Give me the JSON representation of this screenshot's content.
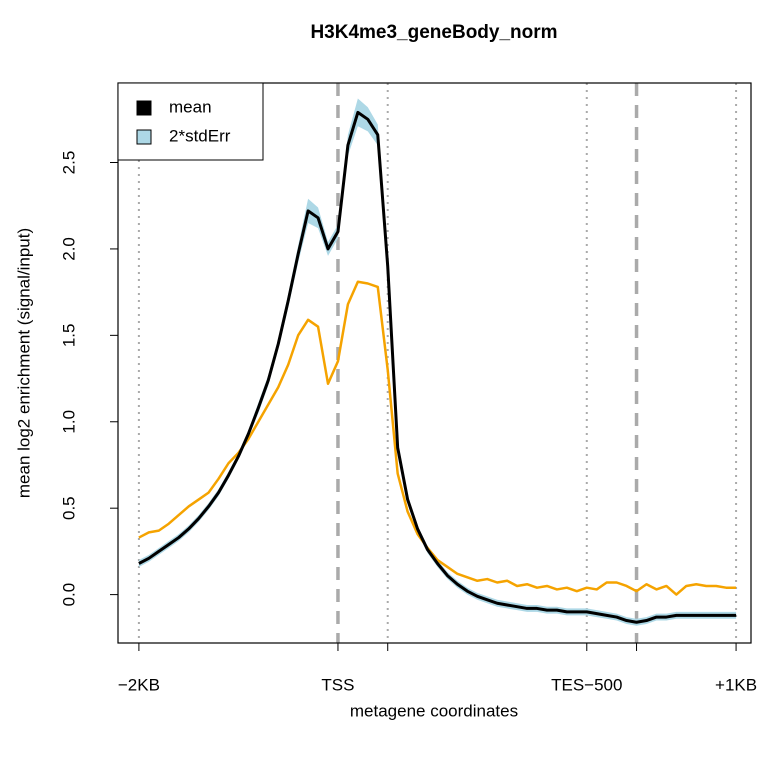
{
  "chart_data": {
    "type": "line",
    "title": "H3K4me3_geneBody_norm",
    "xlabel": "metagene coordinates",
    "ylabel": "mean log2 enrichment (signal/input)",
    "x": [
      0,
      2,
      4,
      6,
      8,
      10,
      12,
      14,
      16,
      18,
      20,
      22,
      24,
      26,
      28,
      30,
      32,
      34,
      36,
      38,
      40,
      42,
      44,
      46,
      48,
      50,
      52,
      54,
      56,
      58,
      60,
      62,
      64,
      66,
      68,
      70,
      72,
      74,
      76,
      78,
      80,
      82,
      84,
      86,
      88,
      90,
      92,
      94,
      96,
      98,
      100,
      102,
      104,
      106,
      108,
      110,
      112,
      114,
      116,
      118,
      120
    ],
    "series": [
      {
        "name": "mean",
        "color": "#000000",
        "values": [
          0.18,
          0.21,
          0.25,
          0.29,
          0.33,
          0.38,
          0.44,
          0.51,
          0.59,
          0.69,
          0.8,
          0.93,
          1.08,
          1.24,
          1.45,
          1.7,
          1.97,
          2.22,
          2.18,
          2.0,
          2.1,
          2.6,
          2.79,
          2.75,
          2.66,
          1.9,
          0.85,
          0.55,
          0.38,
          0.26,
          0.18,
          0.11,
          0.06,
          0.02,
          -0.01,
          -0.03,
          -0.05,
          -0.06,
          -0.07,
          -0.08,
          -0.08,
          -0.09,
          -0.09,
          -0.1,
          -0.1,
          -0.1,
          -0.11,
          -0.12,
          -0.13,
          -0.15,
          -0.16,
          -0.15,
          -0.13,
          -0.13,
          -0.12,
          -0.12,
          -0.12,
          -0.12,
          -0.12,
          -0.12,
          -0.12
        ],
        "err_name": "2*stdErr",
        "err_color": "#add8e6",
        "err": [
          0.02,
          0.02,
          0.02,
          0.02,
          0.02,
          0.02,
          0.02,
          0.02,
          0.02,
          0.02,
          0.02,
          0.02,
          0.03,
          0.03,
          0.03,
          0.04,
          0.05,
          0.07,
          0.06,
          0.04,
          0.04,
          0.06,
          0.08,
          0.07,
          0.06,
          0.05,
          0.03,
          0.02,
          0.02,
          0.02,
          0.02,
          0.02,
          0.02,
          0.02,
          0.02,
          0.02,
          0.02,
          0.02,
          0.02,
          0.02,
          0.02,
          0.02,
          0.02,
          0.02,
          0.02,
          0.02,
          0.02,
          0.02,
          0.02,
          0.02,
          0.02,
          0.02,
          0.02,
          0.02,
          0.02,
          0.02,
          0.02,
          0.02,
          0.02,
          0.02,
          0.02
        ]
      },
      {
        "color": "#f5a300",
        "values": [
          0.33,
          0.36,
          0.37,
          0.41,
          0.46,
          0.51,
          0.55,
          0.59,
          0.67,
          0.76,
          0.82,
          0.9,
          1.0,
          1.1,
          1.2,
          1.33,
          1.5,
          1.59,
          1.55,
          1.22,
          1.35,
          1.68,
          1.81,
          1.8,
          1.78,
          1.3,
          0.7,
          0.48,
          0.35,
          0.27,
          0.2,
          0.16,
          0.12,
          0.1,
          0.08,
          0.09,
          0.07,
          0.08,
          0.05,
          0.06,
          0.04,
          0.05,
          0.03,
          0.04,
          0.02,
          0.04,
          0.03,
          0.07,
          0.07,
          0.05,
          0.02,
          0.06,
          0.03,
          0.05,
          0.0,
          0.05,
          0.06,
          0.05,
          0.05,
          0.04,
          0.04
        ]
      }
    ],
    "xlim": [
      -4.2,
      123
    ],
    "ylim": [
      -0.28,
      2.96
    ],
    "xticks": [
      {
        "value": 0,
        "label": "−2KB"
      },
      {
        "value": 40,
        "label": "TSS"
      },
      {
        "value": 50,
        "label": null
      },
      {
        "value": 90,
        "label": "TES−500"
      },
      {
        "value": 100,
        "label": null
      },
      {
        "value": 120,
        "label": "+1KB"
      }
    ],
    "yticks": [
      {
        "value": 0,
        "label": "0.0"
      },
      0.5,
      {
        "value": 1,
        "label": "1.0"
      },
      1.5,
      {
        "value": 2,
        "label": "2.0"
      },
      2.5
    ],
    "vlines": [
      {
        "value": 0,
        "style": "dotted"
      },
      {
        "value": 40,
        "style": "dashed"
      },
      {
        "value": 50,
        "style": "dotted"
      },
      {
        "value": 90,
        "style": "dotted"
      },
      {
        "value": 100,
        "style": "dashed"
      },
      {
        "value": 120,
        "style": "dotted"
      }
    ],
    "legend": "top-left"
  }
}
